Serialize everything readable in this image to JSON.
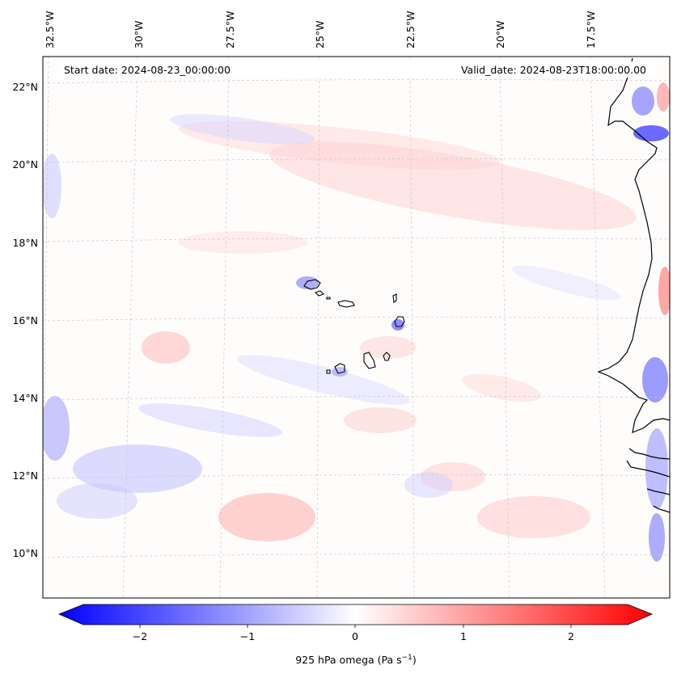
{
  "header": {
    "start_date": "Start date: 2024-08-23_00:00:00",
    "valid_date": "Valid_date: 2024-08-23T18:00:00.00"
  },
  "map": {
    "lon_labels": [
      "32.5°W",
      "30°W",
      "27.5°W",
      "25°W",
      "22.5°W",
      "20°W",
      "17.5°W"
    ],
    "lat_labels": [
      "22°N",
      "20°N",
      "18°N",
      "16°N",
      "14°N",
      "12°N",
      "10°N"
    ],
    "colormap": {
      "low": "#0000ff",
      "mid": "#ffffff",
      "high": "#ff0000"
    }
  },
  "colorbar": {
    "ticks": [
      "−2",
      "−1",
      "0",
      "1",
      "2"
    ],
    "label_main": "925 hPa omega (Pa s",
    "label_sup": "−1",
    "label_end": ")"
  }
}
